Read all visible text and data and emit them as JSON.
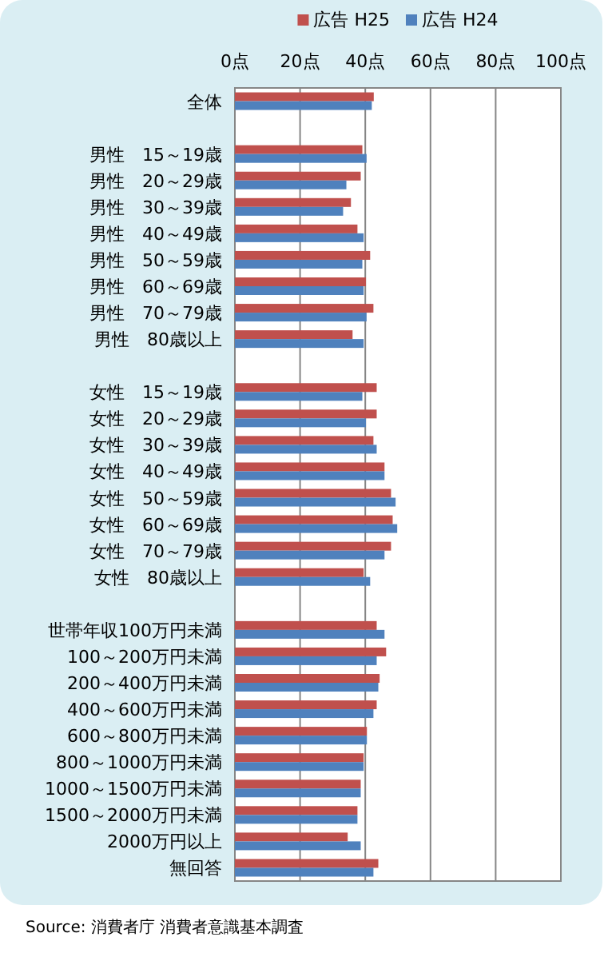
{
  "chart_data": {
    "type": "bar",
    "orientation": "horizontal",
    "categories": [
      "全体",
      null,
      "男性　15～19歳",
      "男性　20～29歳",
      "男性　30～39歳",
      "男性　40～49歳",
      "男性　50～59歳",
      "男性　60～69歳",
      "男性　70～79歳",
      "男性　80歳以上",
      null,
      "女性　15～19歳",
      "女性　20～29歳",
      "女性　30～39歳",
      "女性　40～49歳",
      "女性　50～59歳",
      "女性　60～69歳",
      "女性　70～79歳",
      "女性　80歳以上",
      null,
      "世帯年収100万円未満",
      "100～200万円未満",
      "200～400万円未満",
      "400～600万円未満",
      "600～800万円未満",
      "800～1000万円未満",
      "1000～1500万円未満",
      "1500～2000万円未満",
      "2000万円以上",
      "無回答"
    ],
    "series": [
      {
        "name": "広告 H25",
        "color": "#c0504d",
        "values": [
          42.6,
          null,
          39.1,
          38.6,
          35.6,
          37.6,
          41.5,
          40.2,
          42.5,
          36.1,
          null,
          43.5,
          43.5,
          42.5,
          45.9,
          47.9,
          48.4,
          47.9,
          39.5,
          null,
          43.5,
          46.4,
          44.4,
          43.5,
          40.5,
          39.5,
          38.6,
          37.6,
          34.6,
          44.0
        ]
      },
      {
        "name": "広告 H24",
        "color": "#4f81bd",
        "values": [
          42.0,
          null,
          40.4,
          34.2,
          33.2,
          39.5,
          39.1,
          39.5,
          40.4,
          39.5,
          null,
          39.1,
          40.2,
          43.5,
          45.9,
          49.3,
          49.8,
          45.9,
          41.5,
          null,
          45.9,
          43.5,
          44.0,
          42.5,
          40.5,
          39.5,
          38.6,
          37.6,
          38.6,
          42.5
        ]
      }
    ],
    "xlim": [
      0,
      100
    ],
    "xticks": [
      {
        "value": 0,
        "label": "0点"
      },
      {
        "value": 20,
        "label": "20点"
      },
      {
        "value": 40,
        "label": "40点"
      },
      {
        "value": 60,
        "label": "60点"
      },
      {
        "value": 80,
        "label": "80点"
      },
      {
        "value": 100,
        "label": "100点"
      }
    ],
    "grid": "x",
    "legend": "top",
    "annotations": [
      "Source: 消費者庁 消費者意識基本調査"
    ]
  }
}
